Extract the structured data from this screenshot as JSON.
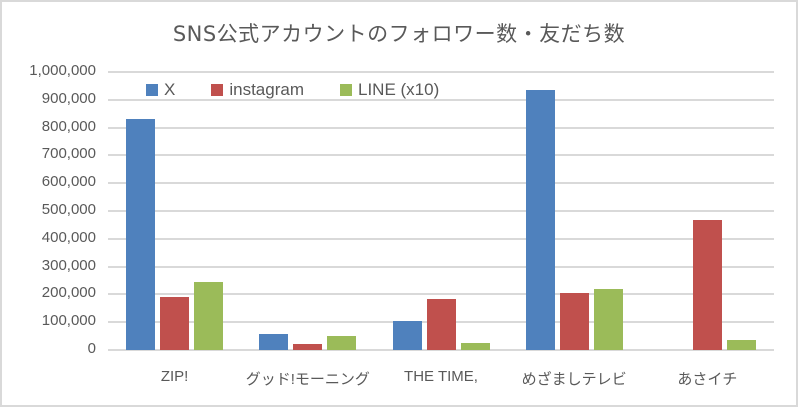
{
  "chart_data": {
    "type": "bar",
    "title": "SNS公式アカウントのフォロワー数・友だち数",
    "xlabel": "",
    "ylabel": "",
    "categories": [
      "ZIP!",
      "グッド!モーニング",
      "THE TIME,",
      "めざましテレビ",
      "あさイチ"
    ],
    "series": [
      {
        "name": "X",
        "color": "#4f81bd",
        "values": [
          830000,
          58000,
          105000,
          935000,
          0
        ]
      },
      {
        "name": "instagram",
        "color": "#c0504d",
        "values": [
          190000,
          22000,
          185000,
          205000,
          468000
        ]
      },
      {
        "name": "LINE (x10)",
        "color": "#9bbb59",
        "values": [
          245000,
          50000,
          25000,
          220000,
          35000
        ]
      }
    ],
    "ylim": [
      0,
      1000000
    ],
    "yticks": [
      "0",
      "100,000",
      "200,000",
      "300,000",
      "400,000",
      "500,000",
      "600,000",
      "700,000",
      "800,000",
      "900,000",
      "1,000,000"
    ],
    "grid": true,
    "legend_position": "top-left inside"
  }
}
